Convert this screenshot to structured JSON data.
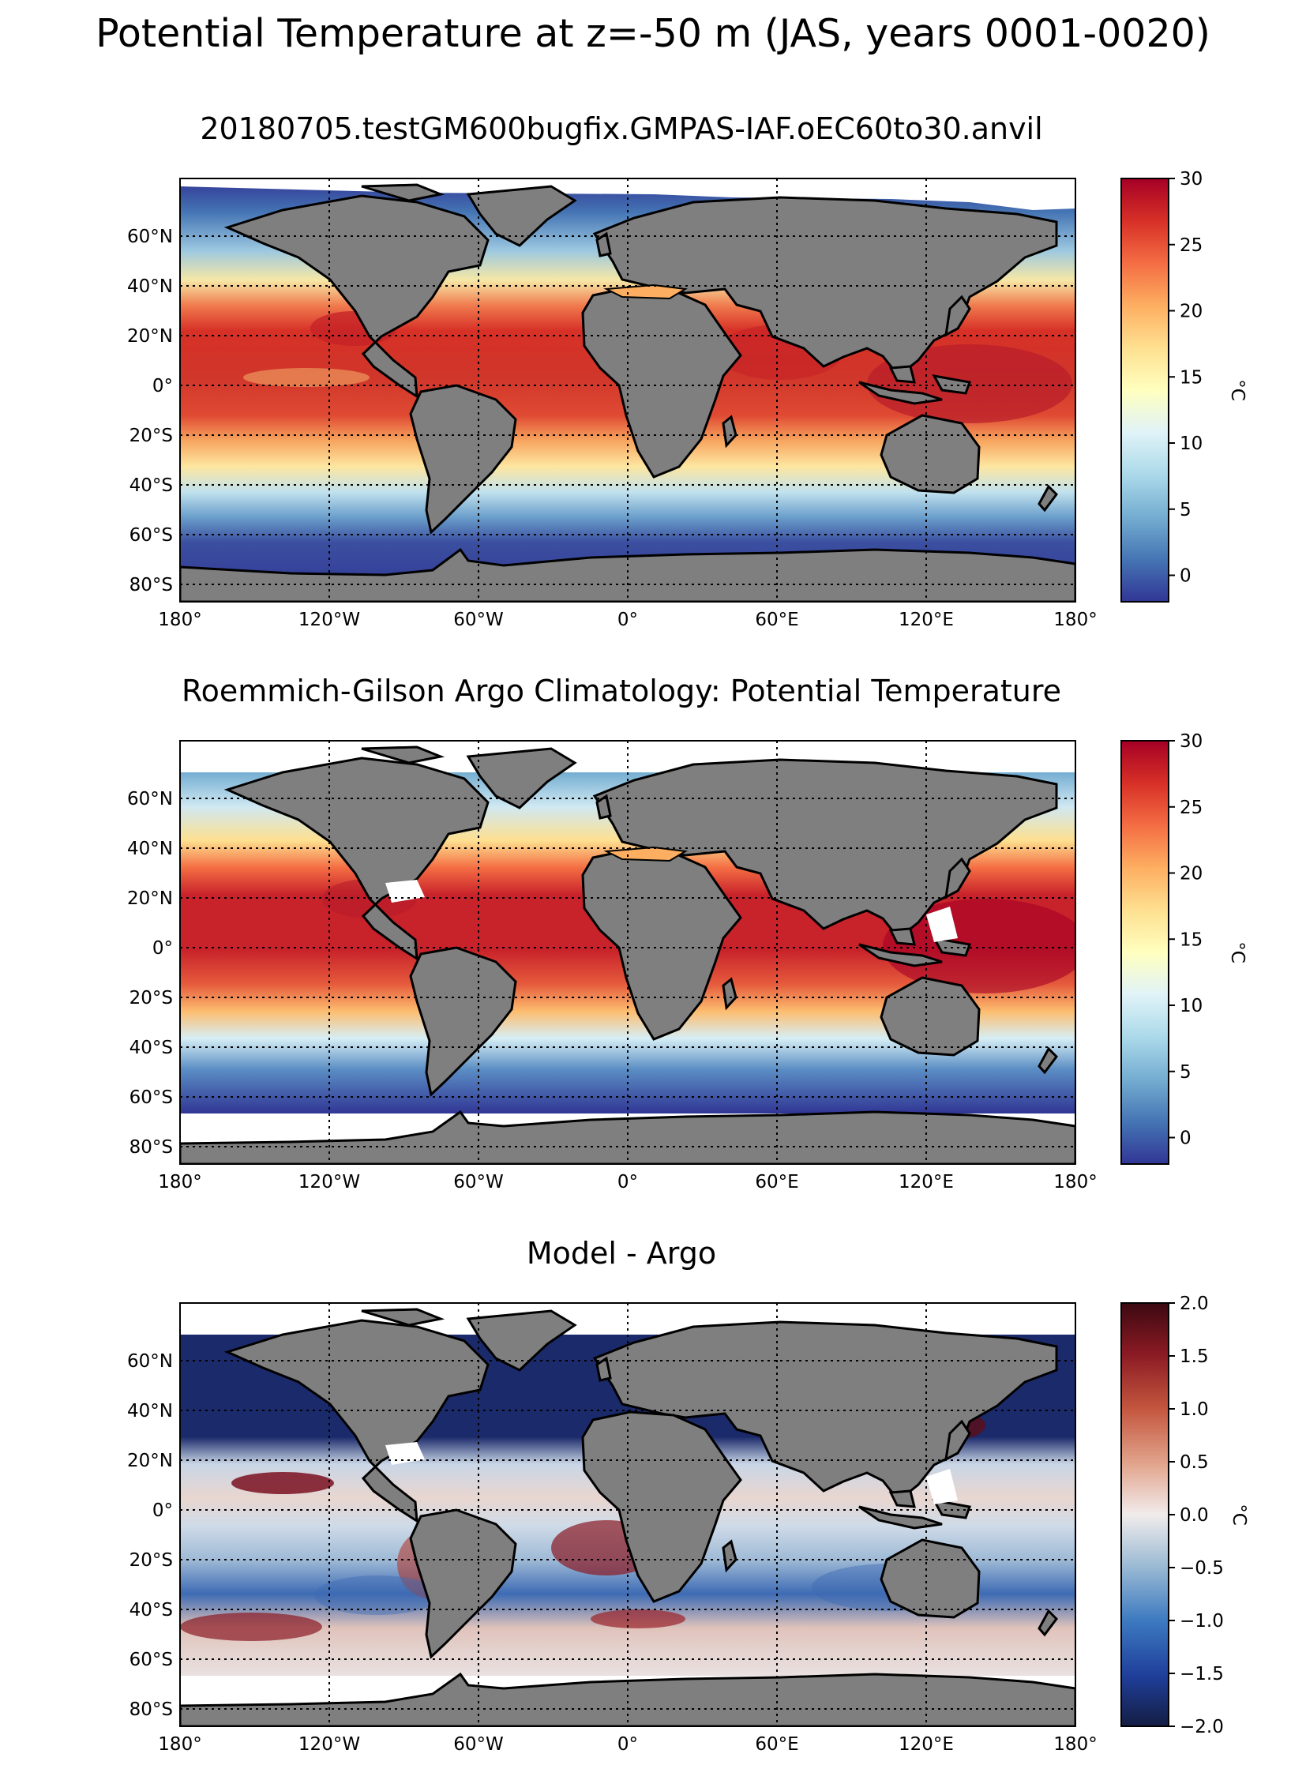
{
  "figure": {
    "title": "Potential Temperature at z=-50 m (JAS, years 0001-0020)"
  },
  "colors": {
    "land": "#7f7f7f",
    "missing": "#ffffff",
    "coast": "#000000",
    "grid": "#000000"
  },
  "longitude_ticks": [
    "180°",
    "120°W",
    "60°W",
    "0°",
    "60°E",
    "120°E",
    "180°"
  ],
  "latitude_ticks": [
    "60°N",
    "40°N",
    "20°N",
    "0°",
    "20°S",
    "40°S",
    "60°S",
    "80°S"
  ],
  "panels": [
    {
      "title": "20180705.testGM600bugfix.GMPAS-IAF.oEC60to30.anvil",
      "colormap": "RdYlBu_r",
      "colorbar": {
        "label": "°C",
        "range": [
          -2,
          30
        ],
        "ticks": [
          "30",
          "25",
          "20",
          "15",
          "10",
          "5",
          "0"
        ],
        "tick_values": [
          30,
          25,
          20,
          15,
          10,
          5,
          0
        ]
      }
    },
    {
      "title": "Roemmich-Gilson Argo Climatology: Potential Temperature",
      "colormap": "RdYlBu_r",
      "colorbar": {
        "label": "°C",
        "range": [
          -2,
          30
        ],
        "ticks": [
          "30",
          "25",
          "20",
          "15",
          "10",
          "5",
          "0"
        ],
        "tick_values": [
          30,
          25,
          20,
          15,
          10,
          5,
          0
        ]
      }
    },
    {
      "title": "Model - Argo",
      "colormap": "RdBu_r",
      "colorbar": {
        "label": "°C",
        "range": [
          -2,
          2
        ],
        "ticks": [
          "2.0",
          "1.5",
          "1.0",
          "0.5",
          "0.0",
          "−0.5",
          "−1.0",
          "−1.5",
          "−2.0"
        ],
        "tick_values": [
          2.0,
          1.5,
          1.0,
          0.5,
          0.0,
          -0.5,
          -1.0,
          -1.5,
          -2.0
        ]
      }
    }
  ],
  "chart_data": [
    {
      "type": "heatmap",
      "title": "20180705.testGM600bugfix.GMPAS-IAF.oEC60to30.anvil",
      "x_range": [
        -180,
        180
      ],
      "y_range": [
        -85,
        85
      ],
      "x_ticks": [
        -180,
        -120,
        -60,
        0,
        60,
        120,
        180
      ],
      "y_ticks": [
        60,
        40,
        20,
        0,
        -20,
        -40,
        -60,
        -80
      ],
      "grid": true,
      "value_range": [
        -2,
        30
      ],
      "zonal_profile_lat": [
        85,
        70,
        60,
        50,
        40,
        30,
        20,
        10,
        0,
        -10,
        -20,
        -30,
        -40,
        -50,
        -60,
        -70,
        -78
      ],
      "zonal_profile_value": [
        0,
        1,
        5,
        11,
        18,
        23,
        26,
        26,
        25,
        25,
        22,
        18,
        12,
        6,
        2,
        0,
        -1
      ]
    },
    {
      "type": "heatmap",
      "title": "Roemmich-Gilson Argo Climatology: Potential Temperature",
      "x_range": [
        -180,
        180
      ],
      "y_range": [
        -85,
        85
      ],
      "x_ticks": [
        -180,
        -120,
        -60,
        0,
        60,
        120,
        180
      ],
      "y_ticks": [
        60,
        40,
        20,
        0,
        -20,
        -40,
        -60,
        -80
      ],
      "grid": true,
      "value_range": [
        -2,
        30
      ],
      "data_lat_range": [
        -64,
        66
      ],
      "zonal_profile_lat": [
        66,
        60,
        50,
        40,
        30,
        20,
        10,
        0,
        -10,
        -20,
        -30,
        -40,
        -50,
        -60,
        -64
      ],
      "zonal_profile_value": [
        6,
        8,
        12,
        19,
        23,
        27,
        27,
        26,
        25,
        22,
        18,
        12,
        5,
        1,
        -1
      ]
    },
    {
      "type": "heatmap",
      "title": "Model - Argo",
      "x_range": [
        -180,
        180
      ],
      "y_range": [
        -85,
        85
      ],
      "x_ticks": [
        -180,
        -120,
        -60,
        0,
        60,
        120,
        180
      ],
      "y_ticks": [
        60,
        40,
        20,
        0,
        -20,
        -40,
        -60,
        -80
      ],
      "grid": true,
      "value_range": [
        -2,
        2
      ],
      "data_lat_range": [
        -64,
        66
      ],
      "zonal_profile_lat": [
        66,
        50,
        40,
        30,
        20,
        10,
        0,
        -10,
        -20,
        -30,
        -40,
        -50,
        -60,
        -64
      ],
      "zonal_profile_value": [
        -1.8,
        -1.6,
        -1.8,
        -1.8,
        -0.8,
        0.3,
        0.0,
        0.2,
        -0.2,
        0.1,
        -0.6,
        -0.5,
        0.3,
        0.1
      ]
    }
  ]
}
